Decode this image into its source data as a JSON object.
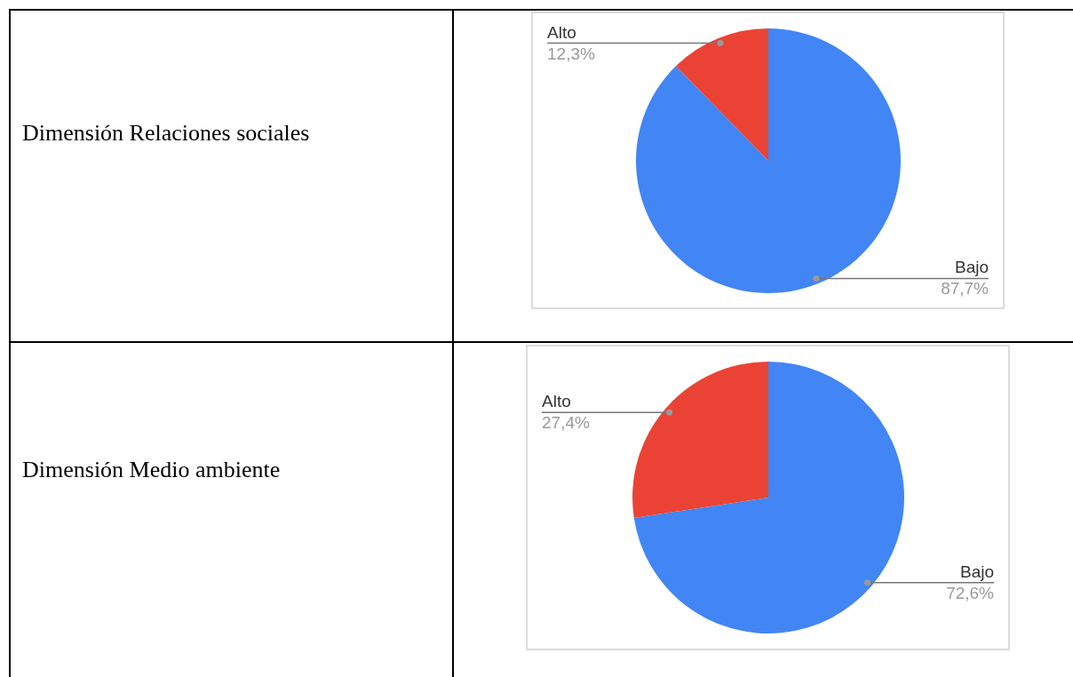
{
  "chart_data": [
    {
      "type": "pie",
      "title": "Dimensión Relaciones sociales",
      "categories": [
        "Bajo",
        "Alto"
      ],
      "values": [
        87.7,
        12.3
      ],
      "colors": [
        "#4285f4",
        "#ea4335"
      ],
      "value_labels": [
        "87,7%",
        "12,3%"
      ]
    },
    {
      "type": "pie",
      "title": "Dimensión Medio ambiente",
      "categories": [
        "Bajo",
        "Alto"
      ],
      "values": [
        72.6,
        27.4
      ],
      "colors": [
        "#4285f4",
        "#ea4335"
      ],
      "value_labels": [
        "72,6%",
        "27,4%"
      ]
    }
  ]
}
